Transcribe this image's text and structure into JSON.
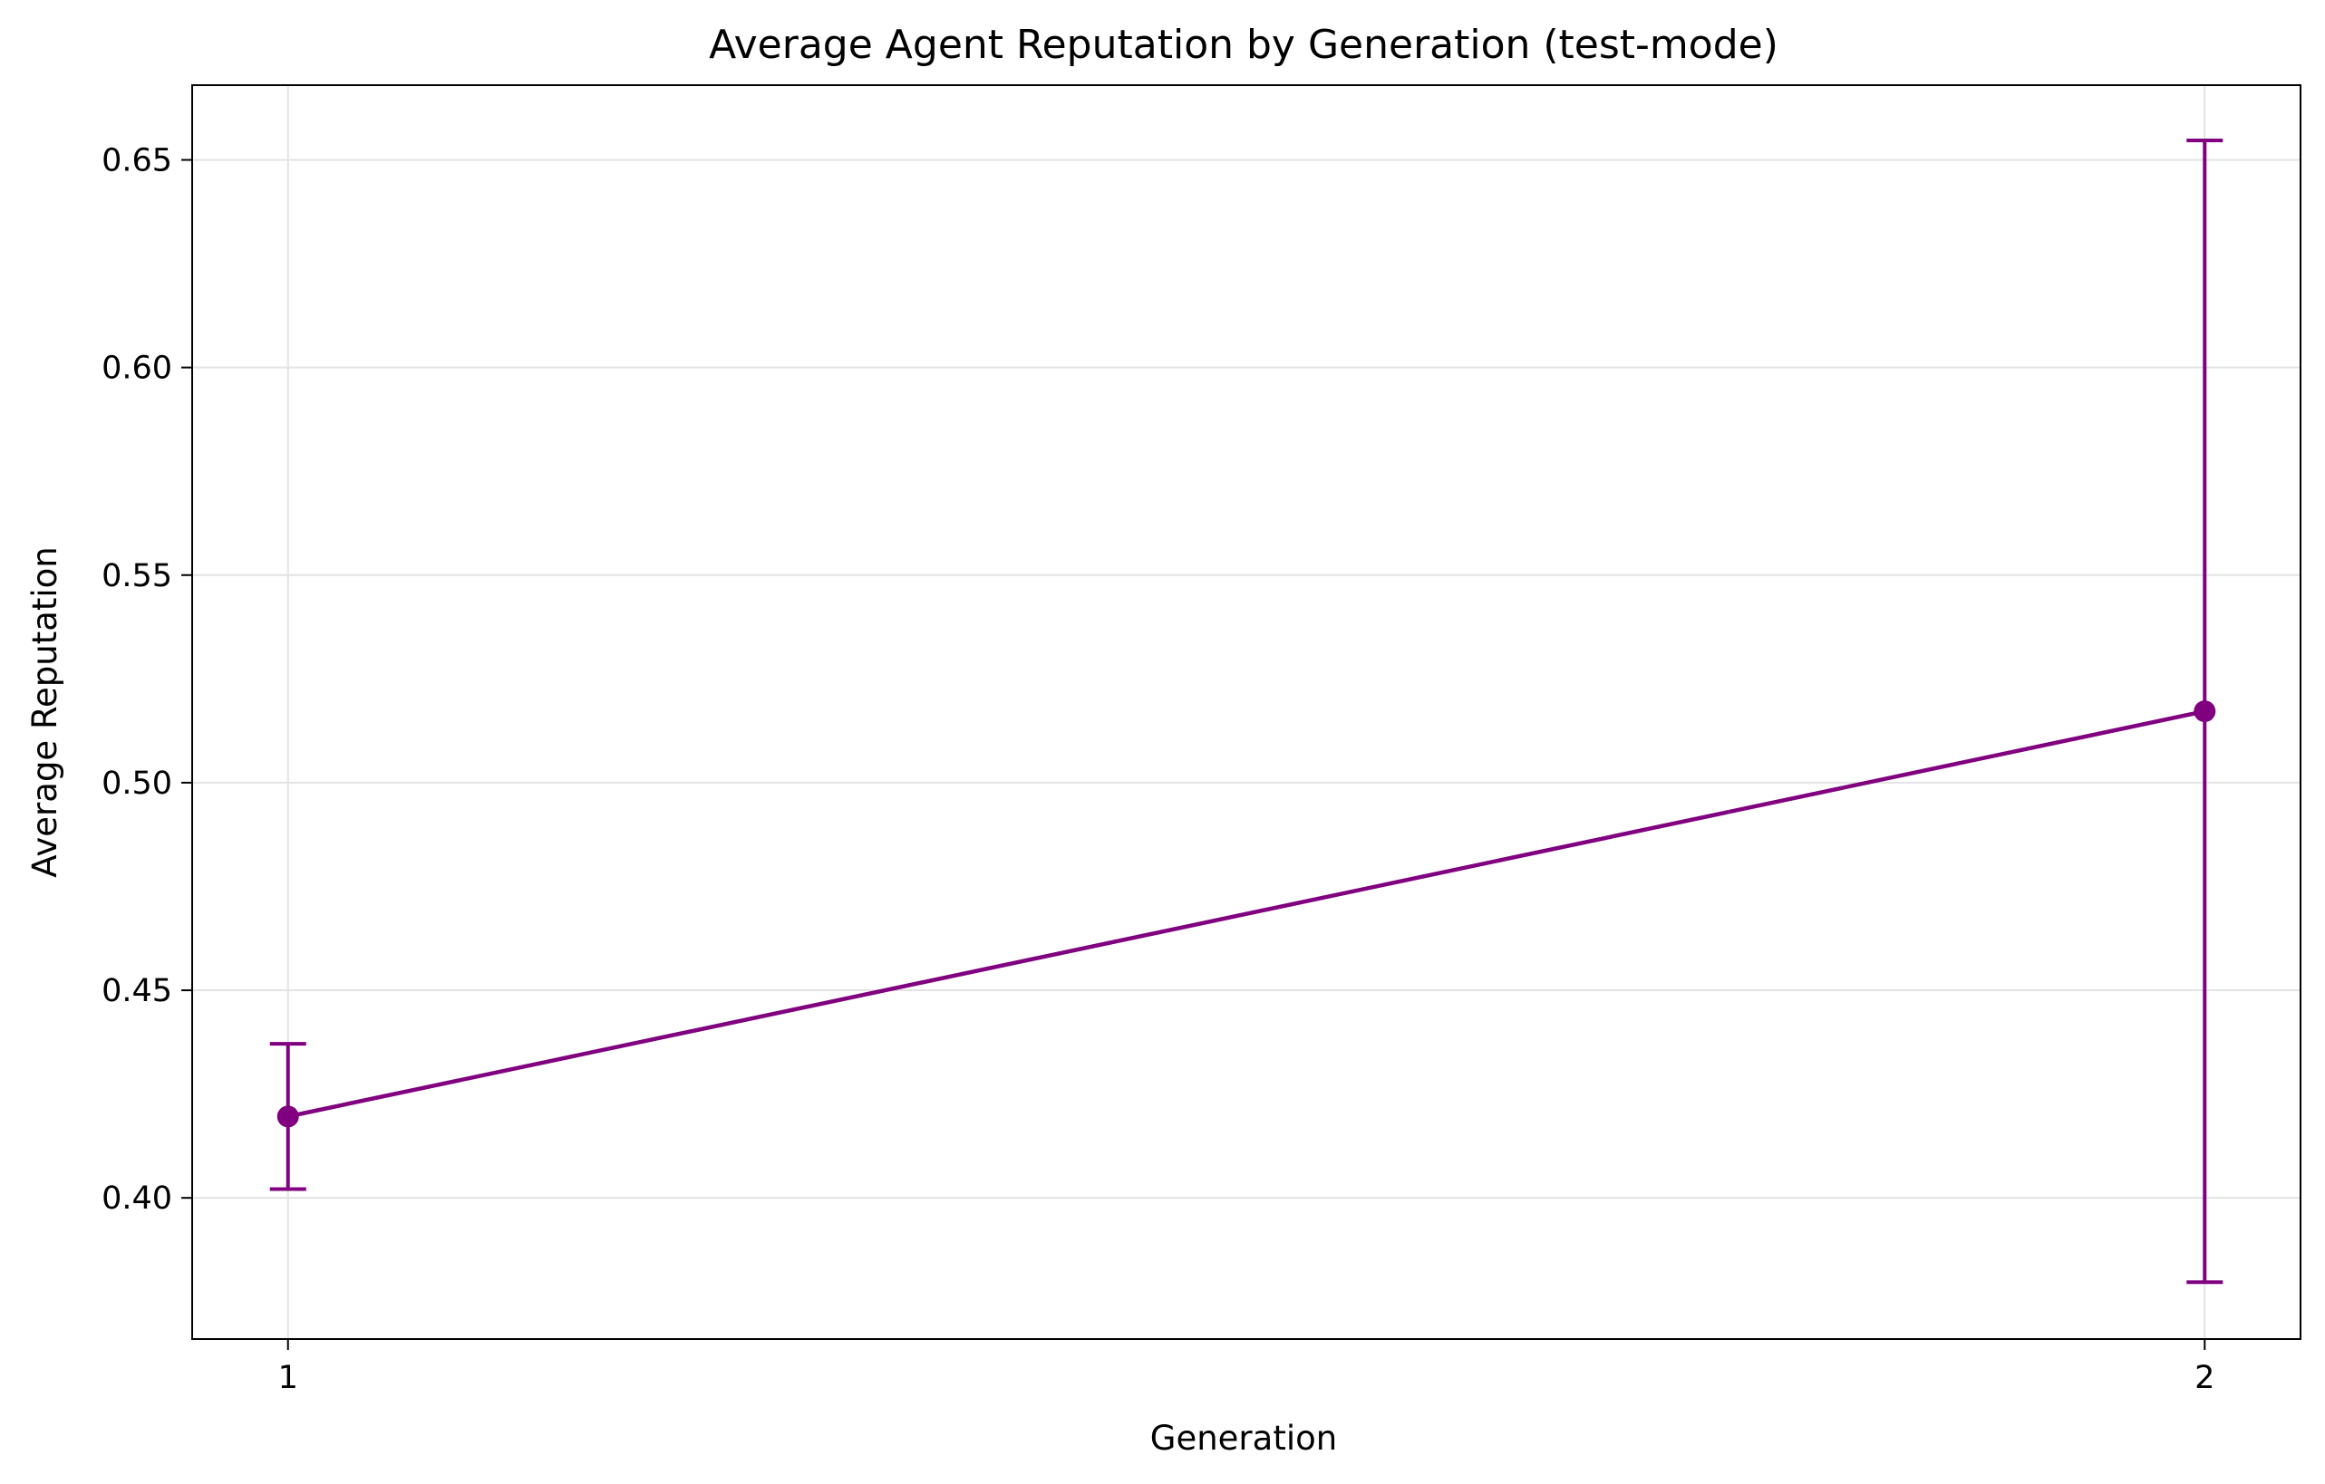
{
  "chart_data": {
    "type": "line",
    "title": "Average Agent Reputation by Generation (test-mode)",
    "xlabel": "Generation",
    "ylabel": "Average Reputation",
    "x": [
      1,
      2
    ],
    "x_tick_labels": [
      "1",
      "2"
    ],
    "y_ticks": [
      0.4,
      0.45,
      0.5,
      0.55,
      0.6,
      0.65
    ],
    "y_tick_labels": [
      "0.40",
      "0.45",
      "0.50",
      "0.55",
      "0.60",
      "0.65"
    ],
    "xlim": [
      0.95,
      2.05
    ],
    "ylim": [
      0.366,
      0.668
    ],
    "grid": true,
    "series": [
      {
        "values": [
          0.4196,
          0.5172
        ],
        "error": [
          0.0175,
          0.1375
        ],
        "color": "#800080",
        "marker": "circle"
      }
    ]
  }
}
